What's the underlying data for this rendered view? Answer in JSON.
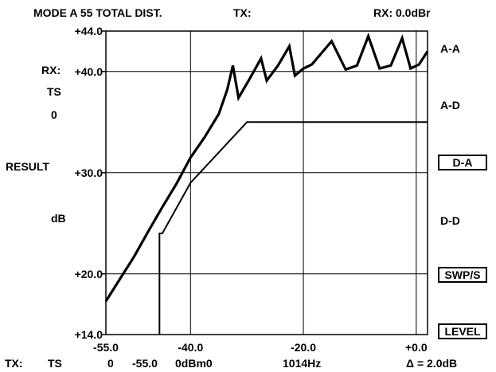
{
  "header": {
    "mode": "MODE A 55 TOTAL DIST.",
    "tx": "TX:",
    "rx": "RX: 0.0dBr"
  },
  "left_panel": {
    "rx_label": "RX:",
    "ts_label": "TS",
    "ts_value": "0",
    "result_label": "RESULT",
    "unit": "dB"
  },
  "softkeys": {
    "a_a": "A-A",
    "a_d": "A-D",
    "d_a": "D-A",
    "d_d": "D-D",
    "swp_s": "SWP/S",
    "level": "LEVEL"
  },
  "footer": {
    "tx": "TX:",
    "ts": "TS",
    "ts_value": "0",
    "level": "-55.0",
    "ref": "0dBm0",
    "freq": "1014Hz",
    "delta": "Δ = 2.0dB"
  },
  "chart_data": {
    "type": "line",
    "title": "MODE A 55 TOTAL DIST.",
    "xlabel": "",
    "ylabel": "dB",
    "xlim": [
      -55.0,
      2.0
    ],
    "ylim": [
      14.0,
      44.0
    ],
    "x_ticks": [
      "-55.0",
      "-40.0",
      "-20.0",
      "+0.0"
    ],
    "y_ticks": [
      "+44.0",
      "+40.0",
      "+30.0",
      "+20.0",
      "+14.0"
    ],
    "grid": true,
    "series": [
      {
        "style": "measured",
        "x": [
          -55.0,
          -52.5,
          -50.0,
          -47.5,
          -45.0,
          -42.5,
          -40.0,
          -37.5,
          -35.0,
          -33.5,
          -32.5,
          -31.5,
          -29.5,
          -27.5,
          -26.5,
          -24.5,
          -22.5,
          -21.5,
          -20.0,
          -18.5,
          -15.0,
          -12.5,
          -10.5,
          -8.5,
          -6.5,
          -4.5,
          -2.5,
          -1.0,
          0.5,
          2.0
        ],
        "y": [
          17.3,
          19.5,
          21.7,
          24.2,
          26.6,
          28.9,
          31.5,
          33.5,
          35.8,
          38.2,
          40.6,
          37.4,
          39.3,
          41.3,
          39.1,
          40.6,
          42.5,
          39.6,
          40.3,
          40.7,
          43.0,
          40.2,
          40.6,
          43.5,
          40.3,
          40.6,
          43.3,
          40.3,
          40.7,
          42.0
        ]
      },
      {
        "style": "template",
        "x": [
          -45.5,
          -45.5,
          -45.0,
          -40.0,
          -30.0,
          2.0
        ],
        "y": [
          14.0,
          24.0,
          24.0,
          29.0,
          35.0,
          35.0
        ]
      }
    ]
  }
}
